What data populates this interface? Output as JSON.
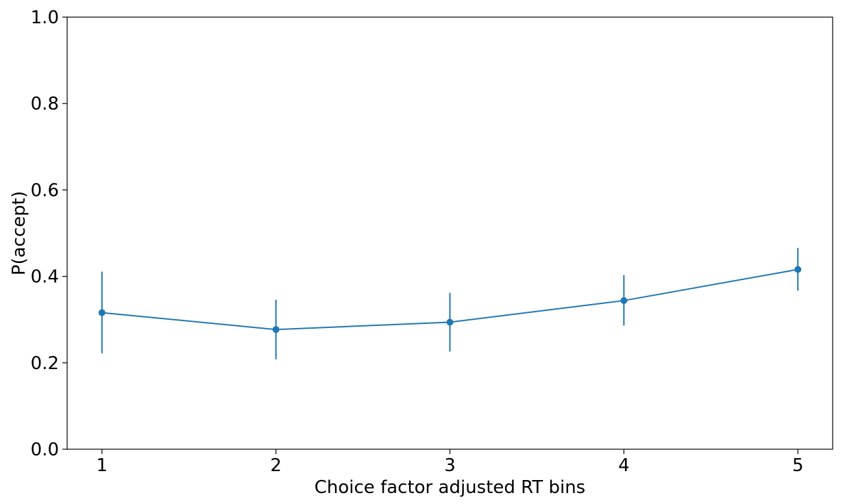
{
  "chart_data": {
    "type": "line",
    "title": "",
    "xlabel": "Choice factor adjusted RT bins",
    "ylabel": "P(accept)",
    "xlim": [
      0.8,
      5.2
    ],
    "ylim": [
      0.0,
      1.0
    ],
    "x_ticks": [
      1,
      2,
      3,
      4,
      5
    ],
    "y_ticks": [
      0.0,
      0.2,
      0.4,
      0.6,
      0.8,
      1.0
    ],
    "x_tick_labels": [
      "1",
      "2",
      "3",
      "4",
      "5"
    ],
    "y_tick_labels": [
      "0.0",
      "0.2",
      "0.4",
      "0.6",
      "0.8",
      "1.0"
    ],
    "grid": false,
    "series": [
      {
        "color": "#1f77b4",
        "x": [
          1,
          2,
          3,
          4,
          5
        ],
        "y": [
          0.316,
          0.277,
          0.294,
          0.344,
          0.416
        ],
        "err_low": [
          0.222,
          0.208,
          0.226,
          0.286,
          0.367
        ],
        "err_high": [
          0.411,
          0.346,
          0.362,
          0.403,
          0.466
        ]
      }
    ]
  }
}
